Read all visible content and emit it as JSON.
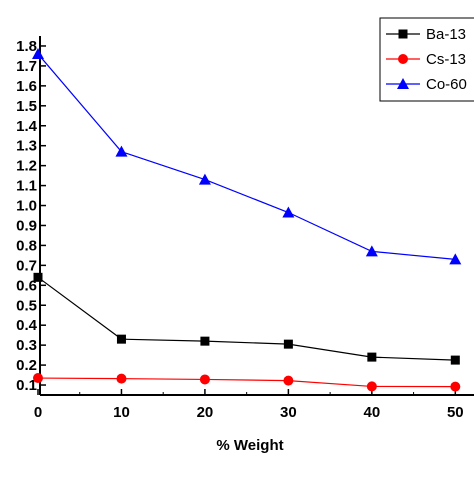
{
  "chart_data": {
    "type": "line",
    "title": "",
    "xlabel": "% Weight",
    "ylabel": "",
    "x": [
      0,
      10,
      20,
      30,
      40,
      50
    ],
    "xlim": [
      0,
      52
    ],
    "ylim": [
      0.05,
      1.85
    ],
    "x_ticks": [
      0,
      10,
      20,
      30,
      40,
      50
    ],
    "y_ticks": [
      0.1,
      0.2,
      0.3,
      0.4,
      0.5,
      0.6,
      0.7,
      0.8,
      0.9,
      1.0,
      1.1,
      1.2,
      1.3,
      1.4,
      1.5,
      1.6,
      1.7,
      1.8
    ],
    "y_tick_labels": [
      "0.1",
      "0.2",
      "0.3",
      "0.4",
      "0.5",
      "0.6",
      "0.7",
      "0.8",
      "0.9",
      "1.0",
      "1.1",
      "1.2",
      "1.3",
      "1.4",
      "1.5",
      "1.6",
      "1.7",
      "1.8"
    ],
    "grid": false,
    "legend_position": "top-right",
    "series": [
      {
        "name": "Ba-13",
        "values": [
          0.64,
          0.33,
          0.32,
          0.305,
          0.24,
          0.225
        ],
        "color": "#000000",
        "marker": "square"
      },
      {
        "name": "Cs-13",
        "values": [
          0.135,
          0.132,
          0.128,
          0.122,
          0.093,
          0.092
        ],
        "color": "#ff0000",
        "marker": "circle"
      },
      {
        "name": "Co-60",
        "values": [
          1.76,
          1.27,
          1.13,
          0.965,
          0.77,
          0.73
        ],
        "color": "#0000ff",
        "marker": "triangle"
      }
    ]
  }
}
